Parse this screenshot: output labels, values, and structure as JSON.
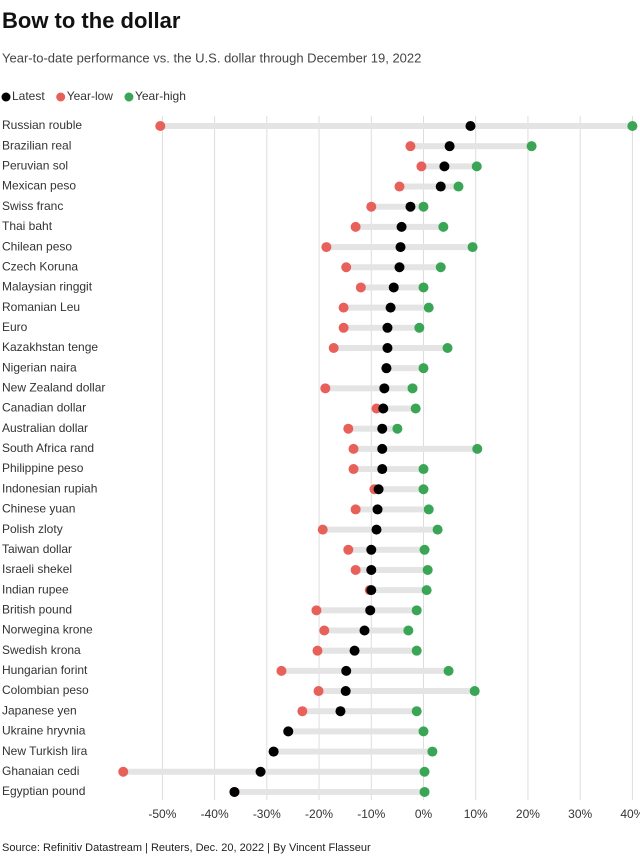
{
  "chart_data": {
    "type": "dotrange",
    "title": "Bow to the dollar",
    "subtitle": "Year-to-date performance vs. the U.S. dollar through December 19, 2022",
    "source": "Source: Refinitiv Datastream | Reuters, Dec. 20, 2022 | By Vincent Flasseur",
    "categories": [
      "Russian rouble",
      "Brazilian real",
      "Peruvian sol",
      "Mexican peso",
      "Swiss franc",
      "Thai baht",
      "Chilean peso",
      "Czech Koruna",
      "Malaysian ringgit",
      "Romanian Leu",
      "Euro",
      "Kazakhstan tenge",
      "Nigerian naira",
      "New Zealand dollar",
      "Canadian dollar",
      "Australian dollar",
      "South Africa rand",
      "Philippine peso",
      "Indonesian rupiah",
      "Chinese yuan",
      "Polish zloty",
      "Taiwan dollar",
      "Israeli shekel",
      "Indian rupee",
      "British pound",
      "Norwegina krone",
      "Swedish krona",
      "Hungarian forint",
      "Colombian peso",
      "Japanese yen",
      "Ukraine hryvnia",
      "New Turkish lira",
      "Ghanaian cedi",
      "Egyptian pound"
    ],
    "series": [
      {
        "name": "Latest",
        "color": "#000000",
        "values": [
          9,
          5,
          4,
          3.3,
          -2.5,
          -4.2,
          -4.4,
          -4.6,
          -5.7,
          -6.3,
          -6.9,
          -6.9,
          -7.1,
          -7.5,
          -7.7,
          -7.9,
          -7.9,
          -7.9,
          -8.6,
          -8.8,
          -9,
          -10,
          -10,
          -10,
          -10.2,
          -11.3,
          -13.2,
          -14.8,
          -14.9,
          -15.9,
          -25.9,
          -28.7,
          -31.2,
          -36.2
        ]
      },
      {
        "name": "Year-low",
        "color": "#e8605a",
        "values": [
          -50.4,
          -2.5,
          -0.4,
          -4.6,
          -10,
          -13,
          -18.6,
          -14.8,
          -12,
          -15.3,
          -15.3,
          -17.2,
          -7.1,
          -18.8,
          -9,
          -14.4,
          -13.4,
          -13.4,
          -9.4,
          -13,
          -19.3,
          -14.4,
          -13,
          -10.3,
          -20.5,
          -19,
          -20.3,
          -27.2,
          -20.1,
          -23.2,
          -25.9,
          -28.7,
          -57.5,
          -36.2
        ]
      },
      {
        "name": "Year-high",
        "color": "#3aa655",
        "values": [
          40,
          20.7,
          10.2,
          6.7,
          0,
          3.8,
          9.4,
          3.3,
          0,
          1,
          -0.8,
          4.6,
          0,
          -2.1,
          -1.5,
          -5,
          10.3,
          0,
          0,
          1,
          2.7,
          0.2,
          0.8,
          0.6,
          -1.3,
          -2.9,
          -1.3,
          4.8,
          9.8,
          -1.3,
          0,
          1.7,
          0.2,
          0.2
        ]
      }
    ],
    "xlim": [
      -58.5,
      40.5
    ],
    "xticks": [
      {
        "value": -50,
        "label": "-50%"
      },
      {
        "value": -40,
        "label": "-40%"
      },
      {
        "value": -30,
        "label": "-30%"
      },
      {
        "value": -20,
        "label": "-20%"
      },
      {
        "value": -10,
        "label": "-10%"
      },
      {
        "value": 0,
        "label": "0%"
      },
      {
        "value": 10,
        "label": "10%"
      },
      {
        "value": 20,
        "label": "20%"
      },
      {
        "value": 30,
        "label": "30%"
      },
      {
        "value": 40,
        "label": "40%"
      }
    ],
    "grid": true
  }
}
